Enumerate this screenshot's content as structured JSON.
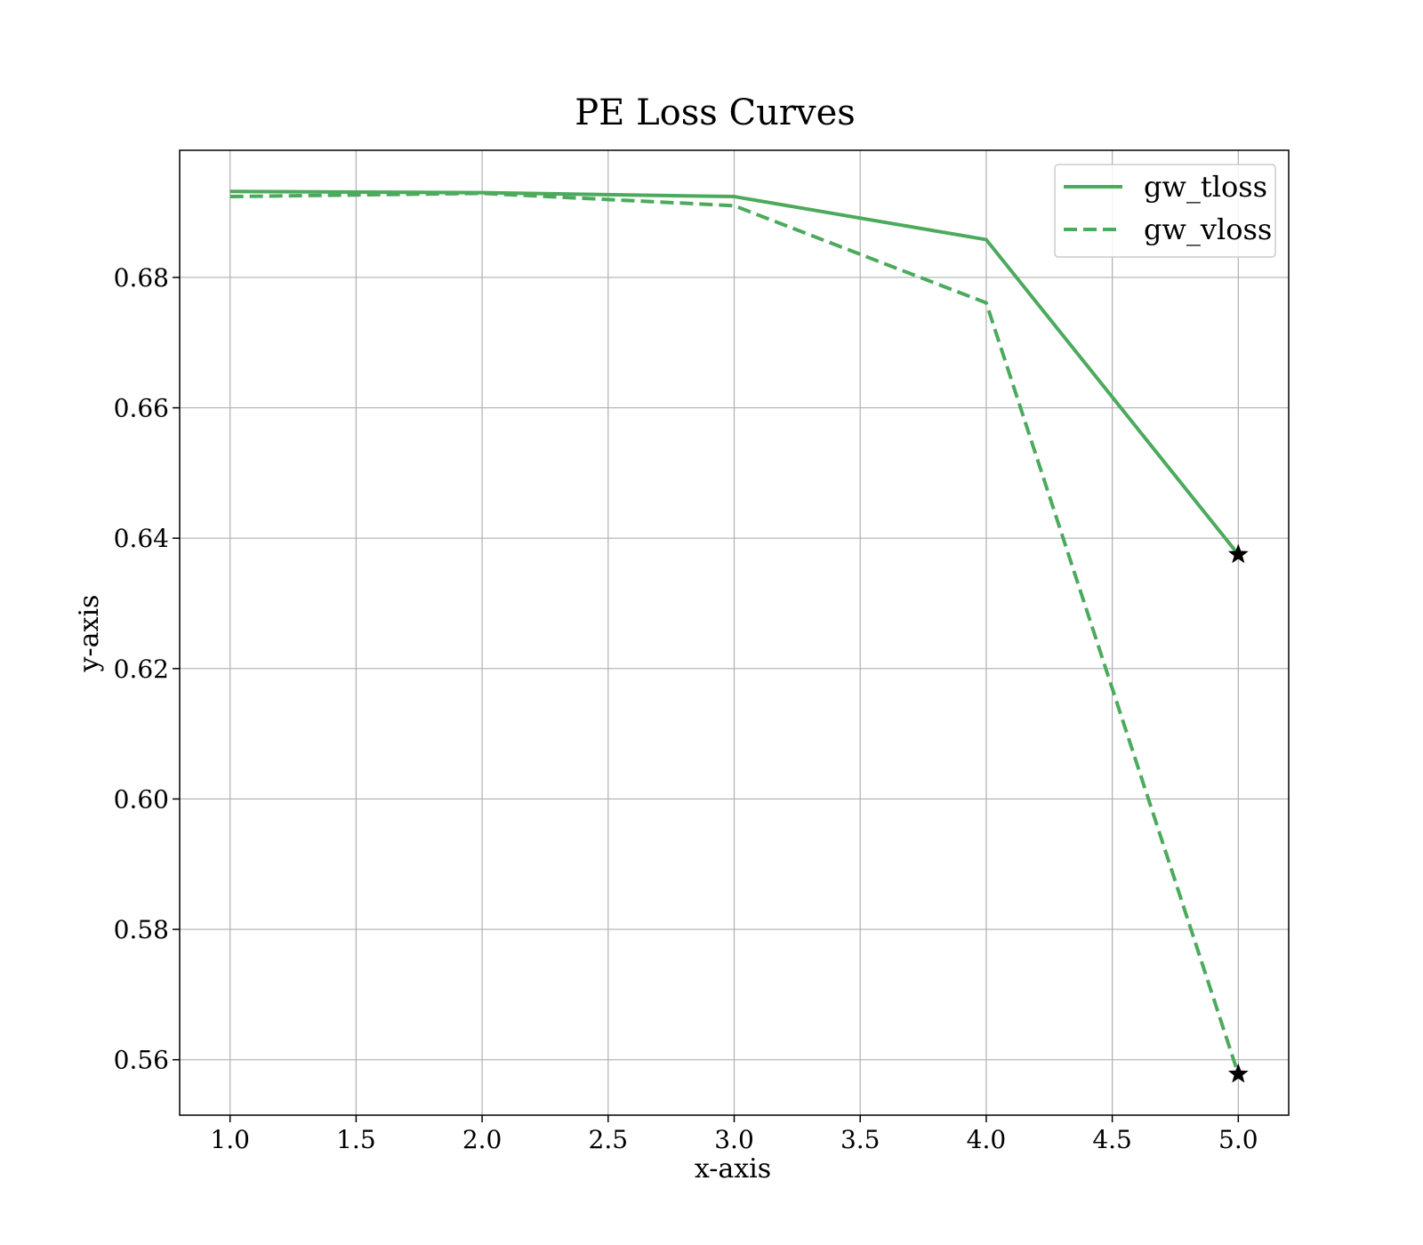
{
  "chart_data": {
    "type": "line",
    "title": "PE Loss Curves",
    "xlabel": "x-axis",
    "ylabel": "y-axis",
    "x": [
      1,
      2,
      3,
      4,
      5
    ],
    "xlim": [
      0.8,
      5.2
    ],
    "ylim": [
      0.5515,
      0.6995
    ],
    "xticks": [
      1.0,
      1.5,
      2.0,
      2.5,
      3.0,
      3.5,
      4.0,
      4.5,
      5.0
    ],
    "xtick_labels": [
      "1.0",
      "1.5",
      "2.0",
      "2.5",
      "3.0",
      "3.5",
      "4.0",
      "4.5",
      "5.0"
    ],
    "yticks": [
      0.56,
      0.58,
      0.6,
      0.62,
      0.64,
      0.66,
      0.68
    ],
    "ytick_labels": [
      "0.56",
      "0.58",
      "0.60",
      "0.62",
      "0.64",
      "0.66",
      "0.68"
    ],
    "grid": true,
    "legend_position": "top-right",
    "series": [
      {
        "name": "gw_tloss",
        "values": [
          0.6932,
          0.693,
          0.6924,
          0.6858,
          0.6375
        ],
        "style": "solid",
        "color": "#4caa5d"
      },
      {
        "name": "gw_vloss",
        "values": [
          0.6924,
          0.6929,
          0.691,
          0.6761,
          0.5578
        ],
        "style": "dashed",
        "color": "#4caa5d"
      }
    ],
    "end_marker": {
      "shape": "star",
      "color": "#000000"
    }
  }
}
